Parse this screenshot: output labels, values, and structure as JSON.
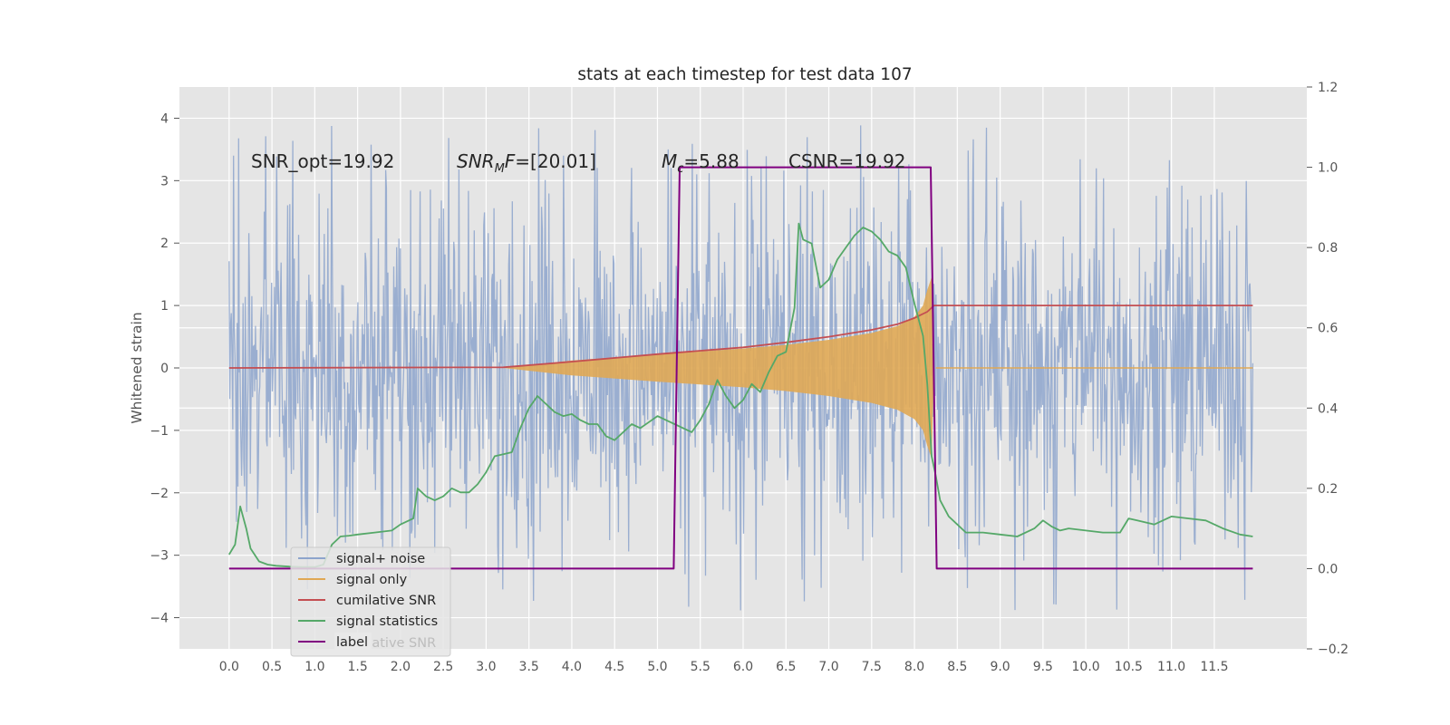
{
  "chart_data": {
    "type": "line",
    "title": "stats at each timestep for test data 107",
    "ylabel": "Whitened strain",
    "xlabel": "",
    "xlim": [
      -0.58,
      12.58
    ],
    "ylim": [
      -4.5,
      4.5
    ],
    "y2lim": [
      -0.2,
      1.2
    ],
    "x_ticks": [
      "0.0",
      "0.5",
      "1.0",
      "1.5",
      "2.0",
      "2.5",
      "3.0",
      "3.5",
      "4.0",
      "4.5",
      "5.0",
      "5.5",
      "6.0",
      "6.5",
      "7.0",
      "7.5",
      "8.0",
      "8.5",
      "9.0",
      "9.5",
      "10.0",
      "10.5",
      "11.0",
      "11.5"
    ],
    "y_ticks": [
      -4,
      -3,
      -2,
      -1,
      0,
      1,
      2,
      3,
      4
    ],
    "y2_ticks": [
      "−0.2",
      "0.0",
      "0.2",
      "0.4",
      "0.6",
      "0.8",
      "1.0",
      "1.2"
    ],
    "grid": true,
    "legend_position": "lower-left",
    "annotations": {
      "snr_opt": "SNR_opt=19.92",
      "snr_mf_base": "SNR",
      "snr_mf_sub": "M",
      "snr_mf_rest": "F=[20.01]",
      "mc_base": "M",
      "mc_sub": "c",
      "mc_rest": "=5.88",
      "csnr": "CSNR=19.92"
    },
    "series": [
      {
        "name": "signal+ noise",
        "axis": "left",
        "color": "#8da4cc",
        "description": "noisy whitened strain, ~±2 with spikes to ±4",
        "x_range": [
          0,
          11.95
        ]
      },
      {
        "name": "signal only",
        "axis": "left",
        "color": "#e0a854",
        "envelope_x": [
          3.2,
          4.0,
          5.0,
          6.0,
          6.5,
          7.0,
          7.5,
          7.8,
          8.0,
          8.1,
          8.15,
          8.2
        ],
        "envelope_amp": [
          0.0,
          0.12,
          0.22,
          0.31,
          0.37,
          0.45,
          0.56,
          0.67,
          0.82,
          1.0,
          1.25,
          1.45
        ]
      },
      {
        "name": "cumilative SNR",
        "axis": "left",
        "color": "#c44e52",
        "x": [
          0,
          3.2,
          4.0,
          5.0,
          6.0,
          6.5,
          7.0,
          7.5,
          7.8,
          8.0,
          8.15,
          8.22,
          8.23,
          11.95
        ],
        "y": [
          0.0,
          0.01,
          0.1,
          0.22,
          0.33,
          0.41,
          0.5,
          0.61,
          0.7,
          0.8,
          0.9,
          0.99,
          1.0,
          1.0
        ]
      },
      {
        "name": "signal statistics",
        "axis": "right",
        "color": "#55a868",
        "x": [
          0.0,
          0.07,
          0.13,
          0.2,
          0.25,
          0.35,
          0.45,
          0.55,
          0.7,
          0.85,
          1.0,
          1.1,
          1.2,
          1.3,
          1.4,
          1.5,
          1.7,
          1.9,
          2.0,
          2.15,
          2.2,
          2.3,
          2.4,
          2.5,
          2.6,
          2.7,
          2.8,
          2.9,
          3.0,
          3.1,
          3.2,
          3.3,
          3.4,
          3.5,
          3.6,
          3.7,
          3.8,
          3.9,
          4.0,
          4.1,
          4.2,
          4.3,
          4.4,
          4.5,
          4.6,
          4.7,
          4.8,
          4.9,
          5.0,
          5.1,
          5.2,
          5.3,
          5.4,
          5.5,
          5.6,
          5.7,
          5.8,
          5.9,
          6.0,
          6.1,
          6.2,
          6.3,
          6.4,
          6.5,
          6.6,
          6.65,
          6.7,
          6.8,
          6.9,
          7.0,
          7.1,
          7.2,
          7.3,
          7.4,
          7.5,
          7.6,
          7.7,
          7.8,
          7.9,
          8.0,
          8.1,
          8.15,
          8.2,
          8.25,
          8.3,
          8.4,
          8.5,
          8.6,
          8.8,
          9.0,
          9.2,
          9.4,
          9.5,
          9.6,
          9.7,
          9.8,
          10.0,
          10.2,
          10.4,
          10.5,
          10.6,
          10.8,
          11.0,
          11.2,
          11.4,
          11.6,
          11.8,
          11.95
        ],
        "y": [
          0.035,
          0.06,
          0.155,
          0.1,
          0.05,
          0.018,
          0.01,
          0.007,
          0.005,
          0.004,
          0.004,
          0.01,
          0.06,
          0.08,
          0.082,
          0.085,
          0.09,
          0.095,
          0.11,
          0.125,
          0.2,
          0.18,
          0.17,
          0.18,
          0.2,
          0.19,
          0.19,
          0.21,
          0.24,
          0.28,
          0.285,
          0.29,
          0.35,
          0.4,
          0.43,
          0.41,
          0.39,
          0.38,
          0.385,
          0.37,
          0.36,
          0.36,
          0.33,
          0.32,
          0.34,
          0.36,
          0.35,
          0.365,
          0.38,
          0.37,
          0.36,
          0.35,
          0.34,
          0.37,
          0.41,
          0.47,
          0.43,
          0.4,
          0.42,
          0.46,
          0.44,
          0.49,
          0.53,
          0.54,
          0.65,
          0.86,
          0.82,
          0.81,
          0.7,
          0.72,
          0.77,
          0.8,
          0.83,
          0.85,
          0.84,
          0.82,
          0.79,
          0.78,
          0.75,
          0.66,
          0.58,
          0.46,
          0.28,
          0.23,
          0.17,
          0.13,
          0.11,
          0.09,
          0.09,
          0.085,
          0.08,
          0.1,
          0.12,
          0.105,
          0.095,
          0.1,
          0.095,
          0.09,
          0.09,
          0.125,
          0.12,
          0.11,
          0.13,
          0.125,
          0.12,
          0.1,
          0.085,
          0.08
        ]
      },
      {
        "name": "label",
        "axis": "right",
        "color": "#800080",
        "x": [
          0,
          5.19,
          5.26,
          8.19,
          8.26,
          11.95
        ],
        "y": [
          0,
          0,
          1,
          1,
          0,
          0
        ]
      }
    ],
    "legend_hidden_text": "cumilative SNR"
  }
}
